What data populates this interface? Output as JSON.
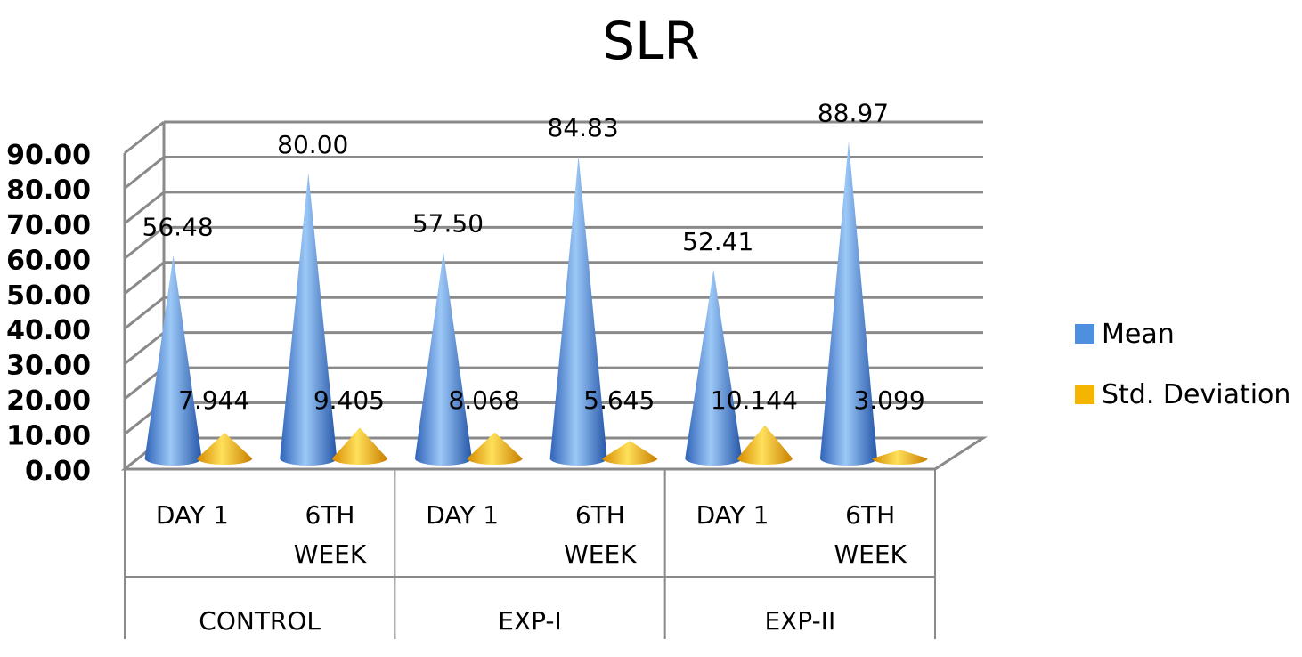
{
  "chart_data": {
    "type": "bar",
    "shape": "cone-3d",
    "title": "SLR",
    "groups": [
      {
        "label": "CONTROL",
        "categories": [
          "DAY 1",
          "6TH WEEK"
        ]
      },
      {
        "label": "EXP-I",
        "categories": [
          "DAY 1",
          "6TH WEEK"
        ]
      },
      {
        "label": "EXP-II",
        "categories": [
          "DAY 1",
          "6TH WEEK"
        ]
      }
    ],
    "series": [
      {
        "name": "Mean",
        "color": "#4f8fe0",
        "values": [
          56.48,
          80.0,
          57.5,
          84.83,
          52.41,
          88.97
        ],
        "labels": [
          "56.48",
          "80.00",
          "57.50",
          "84.83",
          "52.41",
          "88.97"
        ]
      },
      {
        "name": "Std. Deviation",
        "color": "#f5b400",
        "values": [
          7.944,
          9.405,
          8.068,
          5.645,
          10.144,
          3.099
        ],
        "labels": [
          "7.944",
          "9.405",
          "8.068",
          "5.645",
          "10.144",
          "3.099"
        ]
      }
    ],
    "ylim": [
      0,
      90
    ],
    "yticks": [
      "0.00",
      "10.00",
      "20.00",
      "30.00",
      "40.00",
      "50.00",
      "60.00",
      "70.00",
      "80.00",
      "90.00"
    ],
    "grid": true,
    "legend_position": "right"
  }
}
